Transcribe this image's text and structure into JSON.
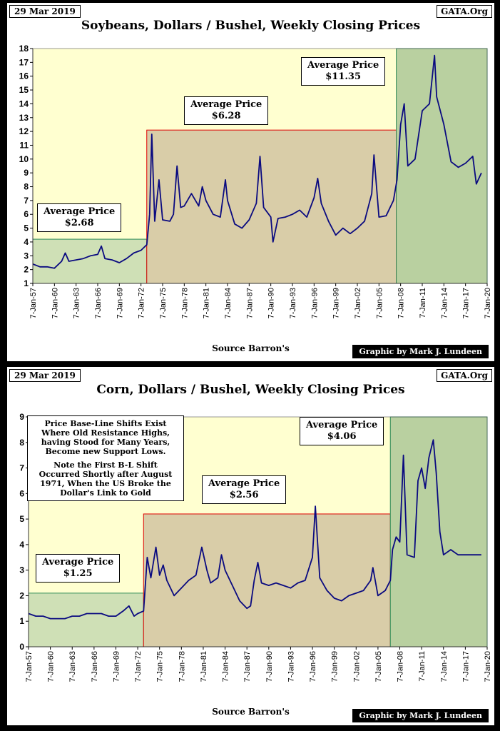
{
  "chart_data": [
    {
      "type": "line",
      "title": "Soybeans, Dollars / Bushel, Weekly Closing Prices",
      "date_stamp": "29 Mar 2019",
      "source_tag": "GATA.Org",
      "xlabel": "Source Barron's",
      "credit": "Graphic by Mark J. Lundeen",
      "ylim": [
        1,
        18
      ],
      "yticks": [
        1,
        2,
        3,
        4,
        5,
        6,
        7,
        8,
        9,
        10,
        11,
        12,
        13,
        14,
        15,
        16,
        17,
        18
      ],
      "xlim": [
        1957.0,
        2020.0
      ],
      "xticks": [
        "7-Jan-57",
        "7-Jan-60",
        "7-Jan-63",
        "7-Jan-66",
        "7-Jan-69",
        "7-Jan-72",
        "7-Jan-75",
        "7-Jan-78",
        "7-Jan-81",
        "7-Jan-84",
        "7-Jan-87",
        "7-Jan-90",
        "7-Jan-93",
        "7-Jan-96",
        "7-Jan-99",
        "7-Jan-02",
        "7-Jan-05",
        "7-Jan-08",
        "7-Jan-11",
        "7-Jan-14",
        "7-Jan-17",
        "7-Jan-20"
      ],
      "grid": false,
      "line_color": "#0a0a80",
      "regions": [
        {
          "x_start": 1957.0,
          "x_end": 1972.8,
          "y_top": 4.2,
          "fill": "#cfe0b6",
          "edge": "#2e8b57",
          "average_title": "Average Price",
          "average_value": "$2.68"
        },
        {
          "x_start": 1972.8,
          "x_end": 2007.4,
          "y_top": 12.1,
          "fill": "#d9cda8",
          "edge": "#e00000",
          "average_title": "Average Price",
          "average_value": "$6.28"
        },
        {
          "x_start": 2007.4,
          "x_end": 2020.0,
          "y_top": 18.0,
          "fill": "#b9d0a0",
          "edge": "#2e8b57",
          "average_title": "Average Price",
          "average_value": "$11.35"
        }
      ],
      "series": [
        {
          "x": [
            1957.0,
            1958.0,
            1959.0,
            1960.0,
            1961.0,
            1961.5,
            1962.0,
            1963.0,
            1964.0,
            1965.0,
            1966.0,
            1966.5,
            1967.0,
            1968.0,
            1969.0,
            1970.0,
            1971.0,
            1972.0,
            1972.8,
            1973.2,
            1973.5,
            1973.9,
            1974.5,
            1975.0,
            1976.0,
            1976.5,
            1977.0,
            1977.5,
            1978.0,
            1979.0,
            1980.0,
            1980.5,
            1981.0,
            1982.0,
            1983.0,
            1983.7,
            1984.0,
            1985.0,
            1986.0,
            1987.0,
            1988.0,
            1988.5,
            1989.0,
            1990.0,
            1990.3,
            1991.0,
            1992.0,
            1993.0,
            1994.0,
            1995.0,
            1996.0,
            1996.5,
            1997.0,
            1998.0,
            1999.0,
            2000.0,
            2001.0,
            2002.0,
            2003.0,
            2004.0,
            2004.3,
            2005.0,
            2006.0,
            2007.0,
            2007.5,
            2008.0,
            2008.5,
            2009.0,
            2010.0,
            2011.0,
            2012.0,
            2012.7,
            2013.0,
            2014.0,
            2015.0,
            2016.0,
            2017.0,
            2018.0,
            2018.5,
            2019.2
          ],
          "values": [
            2.4,
            2.2,
            2.2,
            2.1,
            2.6,
            3.2,
            2.6,
            2.7,
            2.8,
            3.0,
            3.1,
            3.7,
            2.8,
            2.7,
            2.5,
            2.8,
            3.2,
            3.4,
            3.8,
            6.0,
            11.8,
            5.5,
            8.5,
            5.6,
            5.5,
            6.0,
            9.5,
            6.5,
            6.6,
            7.5,
            6.6,
            8.0,
            7.0,
            6.0,
            5.8,
            8.5,
            7.0,
            5.3,
            5.0,
            5.6,
            6.8,
            10.2,
            6.5,
            5.8,
            4.0,
            5.7,
            5.8,
            6.0,
            6.3,
            5.8,
            7.2,
            8.6,
            6.8,
            5.5,
            4.5,
            5.0,
            4.6,
            5.0,
            5.5,
            7.5,
            10.3,
            5.8,
            5.9,
            7.0,
            8.5,
            12.5,
            14.0,
            9.5,
            10.0,
            13.5,
            14.0,
            17.5,
            14.5,
            12.5,
            9.8,
            9.4,
            9.7,
            10.2,
            8.2,
            9.0
          ]
        }
      ]
    },
    {
      "type": "line",
      "title": "Corn, Dollars / Bushel, Weekly Closing Prices",
      "date_stamp": "29 Mar 2019",
      "source_tag": "GATA.Org",
      "xlabel": "Source Barron's",
      "credit": "Graphic by Mark J. Lundeen",
      "ylim": [
        0,
        9
      ],
      "yticks": [
        0,
        1,
        2,
        3,
        4,
        5,
        6,
        7,
        8,
        9
      ],
      "xlim": [
        1957.0,
        2020.0
      ],
      "xticks": [
        "7-Jan-57",
        "7-Jan-60",
        "7-Jan-63",
        "7-Jan-66",
        "7-Jan-69",
        "7-Jan-72",
        "7-Jan-75",
        "7-Jan-78",
        "7-Jan-81",
        "7-Jan-84",
        "7-Jan-87",
        "7-Jan-90",
        "7-Jan-93",
        "7-Jan-96",
        "7-Jan-99",
        "7-Jan-02",
        "7-Jan-05",
        "7-Jan-08",
        "7-Jan-11",
        "7-Jan-14",
        "7-Jan-17",
        "7-Jan-20"
      ],
      "grid": false,
      "line_color": "#0a0a80",
      "regions": [
        {
          "x_start": 1957.0,
          "x_end": 1972.8,
          "y_top": 2.1,
          "fill": "#cfe0b6",
          "edge": "#2e8b57",
          "average_title": "Average Price",
          "average_value": "$1.25"
        },
        {
          "x_start": 1972.8,
          "x_end": 2006.7,
          "y_top": 5.2,
          "fill": "#d9cda8",
          "edge": "#e00000",
          "average_title": "Average Price",
          "average_value": "$2.56"
        },
        {
          "x_start": 2006.7,
          "x_end": 2020.0,
          "y_top": 9.0,
          "fill": "#b9d0a0",
          "edge": "#2e8b57",
          "average_title": "Average Price",
          "average_value": "$4.06"
        }
      ],
      "note": [
        "Price Base-Line Shifts Exist Where Old Resistance Highs, having Stood for Many Years, Become new Support Lows.",
        "Note the First B-L Shift Occurred Shortly after August 1971, When the US Broke the Dollar's Link to Gold"
      ],
      "series": [
        {
          "x": [
            1957.0,
            1958.0,
            1959.0,
            1960.0,
            1961.0,
            1962.0,
            1963.0,
            1964.0,
            1965.0,
            1966.0,
            1967.0,
            1968.0,
            1969.0,
            1970.0,
            1970.8,
            1971.5,
            1972.0,
            1972.8,
            1973.3,
            1973.8,
            1974.5,
            1975.0,
            1975.5,
            1976.0,
            1977.0,
            1978.0,
            1979.0,
            1980.0,
            1980.8,
            1981.5,
            1982.0,
            1983.0,
            1983.5,
            1984.0,
            1985.0,
            1986.0,
            1987.0,
            1987.5,
            1988.0,
            1988.5,
            1989.0,
            1990.0,
            1991.0,
            1992.0,
            1993.0,
            1994.0,
            1995.0,
            1996.0,
            1996.4,
            1997.0,
            1998.0,
            1999.0,
            2000.0,
            2001.0,
            2002.0,
            2003.0,
            2004.0,
            2004.3,
            2005.0,
            2006.0,
            2006.7,
            2007.0,
            2007.5,
            2008.0,
            2008.5,
            2009.0,
            2010.0,
            2010.5,
            2011.0,
            2011.5,
            2012.0,
            2012.6,
            2013.0,
            2013.5,
            2014.0,
            2015.0,
            2016.0,
            2017.0,
            2018.0,
            2019.2
          ],
          "values": [
            1.3,
            1.2,
            1.2,
            1.1,
            1.1,
            1.1,
            1.2,
            1.2,
            1.3,
            1.3,
            1.3,
            1.2,
            1.2,
            1.4,
            1.6,
            1.2,
            1.3,
            1.4,
            3.5,
            2.7,
            3.9,
            2.8,
            3.2,
            2.6,
            2.0,
            2.3,
            2.6,
            2.8,
            3.9,
            3.0,
            2.5,
            2.7,
            3.6,
            3.0,
            2.4,
            1.8,
            1.5,
            1.6,
            2.6,
            3.3,
            2.5,
            2.4,
            2.5,
            2.4,
            2.3,
            2.5,
            2.6,
            3.5,
            5.5,
            2.7,
            2.2,
            1.9,
            1.8,
            2.0,
            2.1,
            2.2,
            2.6,
            3.1,
            2.0,
            2.2,
            2.6,
            3.8,
            4.3,
            4.1,
            7.5,
            3.6,
            3.5,
            6.5,
            7.0,
            6.2,
            7.4,
            8.1,
            6.8,
            4.5,
            3.6,
            3.8,
            3.6,
            3.6,
            3.6,
            3.6
          ]
        }
      ]
    }
  ]
}
